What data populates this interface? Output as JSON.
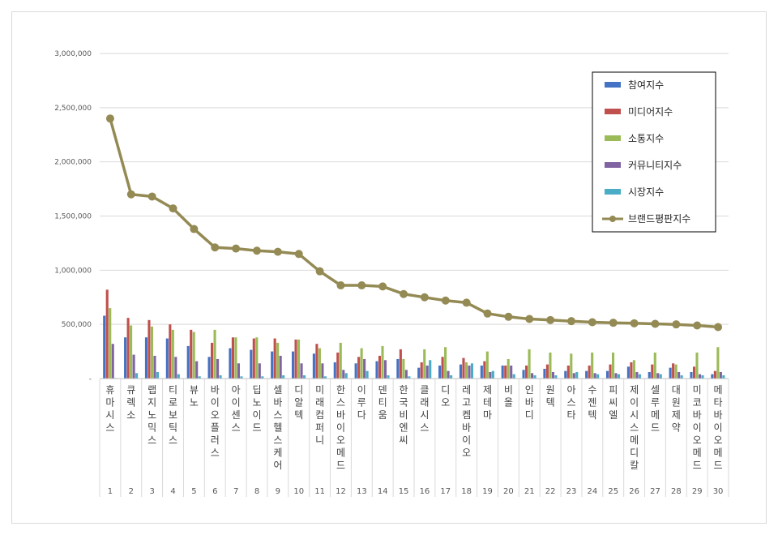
{
  "chart_data": {
    "type": "bar",
    "title": "",
    "xlabel": "",
    "ylabel": "",
    "ylim": [
      0,
      3000000
    ],
    "yticks": [
      0,
      500000,
      1000000,
      1500000,
      2000000,
      2500000,
      3000000
    ],
    "ytick_labels": [
      "-",
      "500,000",
      "1,000,000",
      "1,500,000",
      "2,000,000",
      "2,500,000",
      "3,000,000"
    ],
    "grid": true,
    "legend_position": "right",
    "ranks": [
      "1",
      "2",
      "3",
      "4",
      "5",
      "6",
      "7",
      "8",
      "9",
      "10",
      "11",
      "12",
      "13",
      "14",
      "15",
      "16",
      "17",
      "18",
      "19",
      "20",
      "21",
      "22",
      "23",
      "24",
      "25",
      "26",
      "27",
      "28",
      "29",
      "30"
    ],
    "categories": [
      "휴마시스",
      "큐렉소",
      "랩지노믹스",
      "티로보틱스",
      "뷰노",
      "바이오플러스",
      "아이센스",
      "딥노이드",
      "셀바스헬스케어",
      "디알텍",
      "미래컴퍼니",
      "한스바이오메드",
      "이루다",
      "덴티움",
      "한국비엔씨",
      "클래시스",
      "디오",
      "레고켐바이오",
      "제테마",
      "비올",
      "인바디",
      "원텍",
      "아스타",
      "수젠텍",
      "피씨엘",
      "제이시스메디칼",
      "셀루메드",
      "대원제약",
      "미코바이오메드",
      "메타바이오메드"
    ],
    "series": [
      {
        "name": "참여지수",
        "kind": "bar",
        "color": "#4472c4",
        "values": [
          580000,
          380000,
          380000,
          370000,
          300000,
          200000,
          280000,
          265000,
          250000,
          250000,
          230000,
          150000,
          140000,
          160000,
          180000,
          100000,
          120000,
          130000,
          120000,
          120000,
          80000,
          90000,
          70000,
          70000,
          70000,
          110000,
          60000,
          100000,
          60000,
          40000
        ]
      },
      {
        "name": "미디어지수",
        "kind": "bar",
        "color": "#c0504d",
        "values": [
          820000,
          560000,
          540000,
          500000,
          450000,
          330000,
          380000,
          370000,
          370000,
          360000,
          320000,
          240000,
          200000,
          210000,
          270000,
          150000,
          200000,
          190000,
          160000,
          120000,
          120000,
          130000,
          120000,
          120000,
          130000,
          150000,
          130000,
          140000,
          110000,
          70000
        ]
      },
      {
        "name": "소통지수",
        "kind": "bar",
        "color": "#9bbb59",
        "values": [
          650000,
          490000,
          480000,
          450000,
          430000,
          450000,
          380000,
          380000,
          330000,
          360000,
          280000,
          330000,
          280000,
          300000,
          180000,
          270000,
          290000,
          150000,
          250000,
          180000,
          270000,
          240000,
          230000,
          240000,
          240000,
          170000,
          240000,
          130000,
          240000,
          290000
        ]
      },
      {
        "name": "커뮤니티지수",
        "kind": "bar",
        "color": "#8064a2",
        "values": [
          320000,
          220000,
          210000,
          200000,
          160000,
          180000,
          140000,
          140000,
          210000,
          140000,
          140000,
          80000,
          180000,
          170000,
          80000,
          120000,
          70000,
          120000,
          60000,
          120000,
          50000,
          60000,
          50000,
          50000,
          50000,
          60000,
          50000,
          60000,
          40000,
          60000
        ]
      },
      {
        "name": "시장지수",
        "kind": "bar",
        "color": "#4bacc6",
        "values": [
          5000,
          50000,
          60000,
          40000,
          20000,
          30000,
          20000,
          20000,
          30000,
          30000,
          20000,
          50000,
          70000,
          30000,
          20000,
          170000,
          30000,
          140000,
          70000,
          40000,
          30000,
          30000,
          60000,
          40000,
          40000,
          40000,
          40000,
          30000,
          30000,
          30000
        ]
      },
      {
        "name": "브랜드평판지수",
        "kind": "line",
        "color": "#948a54",
        "values": [
          2400000,
          1700000,
          1680000,
          1570000,
          1380000,
          1210000,
          1200000,
          1180000,
          1170000,
          1150000,
          990000,
          860000,
          860000,
          850000,
          780000,
          750000,
          720000,
          700000,
          600000,
          570000,
          550000,
          540000,
          530000,
          520000,
          515000,
          510000,
          505000,
          500000,
          490000,
          475000
        ]
      }
    ]
  }
}
